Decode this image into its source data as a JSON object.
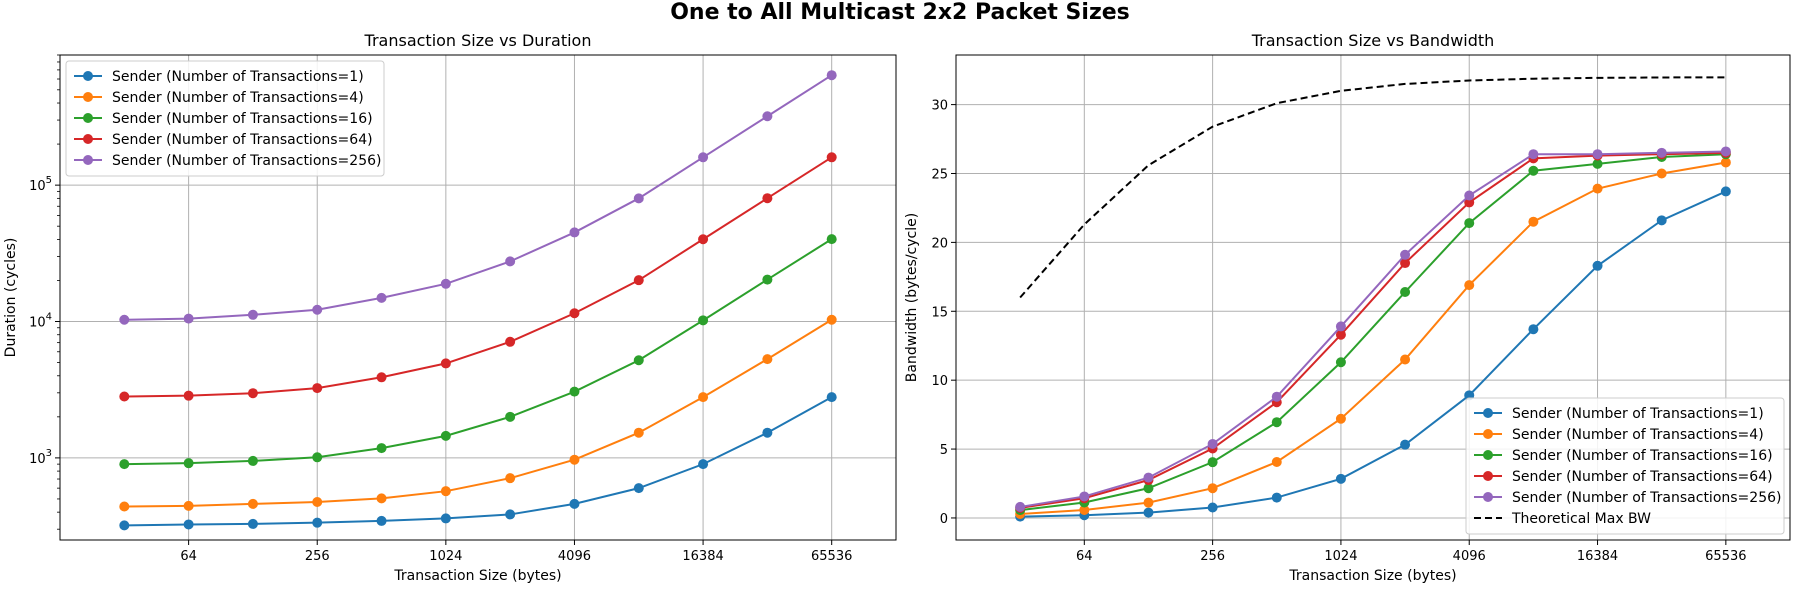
{
  "suptitle": "One to All Multicast 2x2 Packet Sizes",
  "colors": {
    "s1": "#1f77b4",
    "s4": "#ff7f0e",
    "s16": "#2ca02c",
    "s64": "#d62728",
    "s256": "#9467bd",
    "theoretical": "#000000",
    "grid": "#b0b0b0"
  },
  "chart_data": [
    {
      "type": "line",
      "title": "Transaction Size vs Duration",
      "xlabel": "Transaction Size (bytes)",
      "ylabel": "Duration (cycles)",
      "xscale": "log2",
      "yscale": "log10",
      "grid": true,
      "legend_loc": "upper left",
      "x": [
        32,
        64,
        128,
        256,
        512,
        1024,
        2048,
        4096,
        8192,
        16384,
        32768,
        65536
      ],
      "xticks": [
        "64",
        "256",
        "1024",
        "4096",
        "16384",
        "65536"
      ],
      "yticks": [
        "10^3",
        "10^4",
        "10^5"
      ],
      "xlim": [
        16,
        131072
      ],
      "ylim": [
        250,
        900000
      ],
      "series": [
        {
          "name": "Sender (Number of Transactions=1)",
          "color_key": "s1",
          "marker": "o",
          "values": [
            320,
            325,
            328,
            335,
            345,
            360,
            385,
            460,
            600,
            900,
            1530,
            2790
          ]
        },
        {
          "name": "Sender (Number of Transactions=4)",
          "color_key": "s4",
          "marker": "o",
          "values": [
            440,
            445,
            460,
            475,
            505,
            570,
            710,
            970,
            1530,
            2790,
            5300,
            10300
          ]
        },
        {
          "name": "Sender (Number of Transactions=16)",
          "color_key": "s16",
          "marker": "o",
          "values": [
            900,
            915,
            950,
            1010,
            1180,
            1450,
            2000,
            3060,
            5200,
            10200,
            20300,
            40200
          ]
        },
        {
          "name": "Sender (Number of Transactions=64)",
          "color_key": "s64",
          "marker": "o",
          "values": [
            2820,
            2860,
            2980,
            3250,
            3900,
            4930,
            7100,
            11500,
            20100,
            40100,
            80200,
            160000
          ]
        },
        {
          "name": "Sender (Number of Transactions=256)",
          "color_key": "s256",
          "marker": "o",
          "values": [
            10300,
            10500,
            11200,
            12200,
            14900,
            18900,
            27600,
            45000,
            80000,
            160000,
            320000,
            640000
          ]
        }
      ]
    },
    {
      "type": "line",
      "title": "Transaction Size vs Bandwidth",
      "xlabel": "Transaction Size (bytes)",
      "ylabel": "Bandwidth (bytes/cycle)",
      "xscale": "log2",
      "yscale": "linear",
      "grid": true,
      "legend_loc": "lower right",
      "x": [
        32,
        64,
        128,
        256,
        512,
        1024,
        2048,
        4096,
        8192,
        16384,
        32768,
        65536
      ],
      "xticks": [
        "64",
        "256",
        "1024",
        "4096",
        "16384",
        "65536"
      ],
      "yticks": [
        "0",
        "5",
        "10",
        "15",
        "20",
        "25",
        "30"
      ],
      "xlim": [
        16,
        131072
      ],
      "ylim": [
        -1.6,
        33.6
      ],
      "series": [
        {
          "name": "Sender (Number of Transactions=1)",
          "color_key": "s1",
          "marker": "o",
          "values": [
            0.1,
            0.2,
            0.39,
            0.76,
            1.48,
            2.84,
            5.32,
            8.9,
            13.7,
            18.3,
            21.6,
            23.7
          ]
        },
        {
          "name": "Sender (Number of Transactions=4)",
          "color_key": "s4",
          "marker": "o",
          "values": [
            0.29,
            0.58,
            1.11,
            2.16,
            4.06,
            7.2,
            11.5,
            16.9,
            21.5,
            23.9,
            25.0,
            25.8
          ]
        },
        {
          "name": "Sender (Number of Transactions=16)",
          "color_key": "s16",
          "marker": "o",
          "values": [
            0.57,
            1.12,
            2.16,
            4.05,
            6.95,
            11.3,
            16.4,
            21.4,
            25.2,
            25.7,
            26.2,
            26.4
          ]
        },
        {
          "name": "Sender (Number of Transactions=64)",
          "color_key": "s64",
          "marker": "o",
          "values": [
            0.73,
            1.43,
            2.75,
            5.04,
            8.4,
            13.3,
            18.5,
            22.9,
            26.1,
            26.3,
            26.4,
            26.5
          ]
        },
        {
          "name": "Sender (Number of Transactions=256)",
          "color_key": "s256",
          "marker": "o",
          "values": [
            0.8,
            1.56,
            2.93,
            5.37,
            8.8,
            13.9,
            19.1,
            23.4,
            26.4,
            26.4,
            26.5,
            26.6
          ]
        },
        {
          "name": "Theoretical Max BW",
          "color_key": "theoretical",
          "marker": "none",
          "dash": true,
          "values": [
            16.0,
            21.3,
            25.6,
            28.4,
            30.1,
            31.0,
            31.5,
            31.75,
            31.88,
            31.94,
            31.97,
            31.98
          ]
        }
      ]
    }
  ]
}
